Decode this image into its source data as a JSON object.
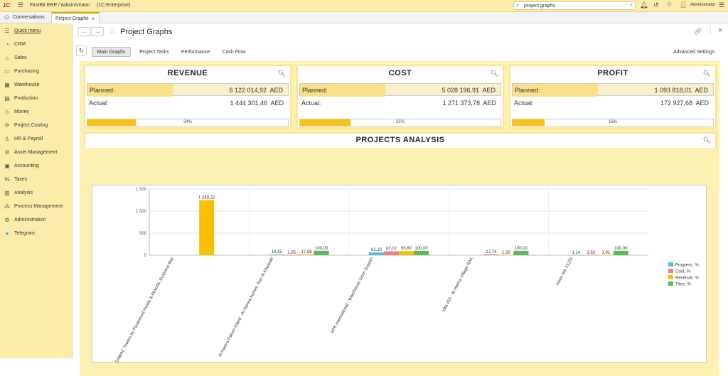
{
  "topbar": {
    "app_title": "FirstBit ERP / Administrator",
    "platform": "(1C:Enterprise)",
    "search_value": "project graphs",
    "user": "Administrator",
    "logo": "1C"
  },
  "tabs": [
    {
      "label": "Conversations"
    },
    {
      "label": "Project Graphs"
    }
  ],
  "sidebar": {
    "items": [
      {
        "label": "Quick menu",
        "icon": "menu-icon"
      },
      {
        "label": "CRM",
        "icon": "crm-icon"
      },
      {
        "label": "Sales",
        "icon": "sales-icon"
      },
      {
        "label": "Purchasing",
        "icon": "purchasing-icon"
      },
      {
        "label": "Warehouse",
        "icon": "warehouse-icon"
      },
      {
        "label": "Production",
        "icon": "production-icon"
      },
      {
        "label": "Money",
        "icon": "money-icon"
      },
      {
        "label": "Project Costing",
        "icon": "project-costing-icon"
      },
      {
        "label": "HR & Payroll",
        "icon": "hr-icon"
      },
      {
        "label": "Asset Management",
        "icon": "asset-icon"
      },
      {
        "label": "Accounting",
        "icon": "accounting-icon"
      },
      {
        "label": "Taxes",
        "icon": "taxes-icon"
      },
      {
        "label": "Analysis",
        "icon": "analysis-icon"
      },
      {
        "label": "Process Management",
        "icon": "process-icon"
      },
      {
        "label": "Administration",
        "icon": "administration-icon"
      },
      {
        "label": "Telegram",
        "icon": "telegram-icon"
      }
    ]
  },
  "page": {
    "title": "Project Graphs"
  },
  "content_tabs": [
    {
      "label": "Main Graphs"
    },
    {
      "label": "Project Tasks"
    },
    {
      "label": "Performance"
    },
    {
      "label": "Cash Flow"
    }
  ],
  "advanced_settings": "Advanced Settings",
  "kpis": [
    {
      "title": "REVENUE",
      "planned_label": "Planned:",
      "planned": "6 122 014,92",
      "actual_label": "Actual:",
      "actual": "1 444 301,46",
      "currency": "AED",
      "progress_text": "24%",
      "progress": 24
    },
    {
      "title": "COST",
      "planned_label": "Planned:",
      "planned": "5 028 196,91",
      "actual_label": "Actual:",
      "actual": "1 271 373,78",
      "currency": "AED",
      "progress_text": "25%",
      "progress": 25
    },
    {
      "title": "PROFIT",
      "planned_label": "Planned:",
      "planned": "1 093 818,01",
      "actual_label": "Actual:",
      "actual": "172 927,68",
      "currency": "AED",
      "progress_text": "16%",
      "progress": 16
    }
  ],
  "analysis": {
    "title": "PROJECTS ANALYSIS"
  },
  "chart_data": {
    "type": "bar",
    "title": "PROJECTS ANALYSIS",
    "ylim": [
      0,
      1500
    ],
    "yticks": [
      0,
      500,
      1000,
      1500
    ],
    "ytick_labels": [
      "0",
      "500",
      "1 000",
      "1 500"
    ],
    "grid": true,
    "legend_position": "right",
    "categories": [
      "DAMAC Towers by Paramount Hotels & Resorts, Business Bay",
      "Al Hamra Falcon Island - Al Hamra homes, Ras Al Khaimah",
      "KPK International - Warehouse Umm Suqeim",
      "Villa #15 - Al Hamra Village RAK",
      "moon link #1231"
    ],
    "series": [
      {
        "name": "Progress, %",
        "color": "#4fc1e8",
        "values": [
          null,
          14.15,
          61.2,
          null,
          1.14
        ],
        "labels": [
          "",
          "14,15",
          "61,20",
          "",
          "1,14"
        ]
      },
      {
        "name": "Cost, %",
        "color": "#f08080",
        "values": [
          null,
          1.05,
          87.07,
          17.74,
          3.63
        ],
        "labels": [
          "",
          "1,05",
          "87,07",
          "17,74",
          "3,63"
        ]
      },
      {
        "name": "Revenue, %",
        "color": "#f7c000",
        "values": [
          1248.32,
          17.88,
          93.8,
          1.3,
          1.01
        ],
        "labels": [
          "1 248,32",
          "17,88",
          "93,80",
          "1,30",
          "1,01"
        ]
      },
      {
        "name": "Time, %",
        "color": "#5cb85c",
        "values": [
          null,
          100.0,
          100.0,
          100.0,
          100.0
        ],
        "labels": [
          "",
          "100,00",
          "100,00",
          "100,00",
          "100,00"
        ]
      }
    ]
  }
}
